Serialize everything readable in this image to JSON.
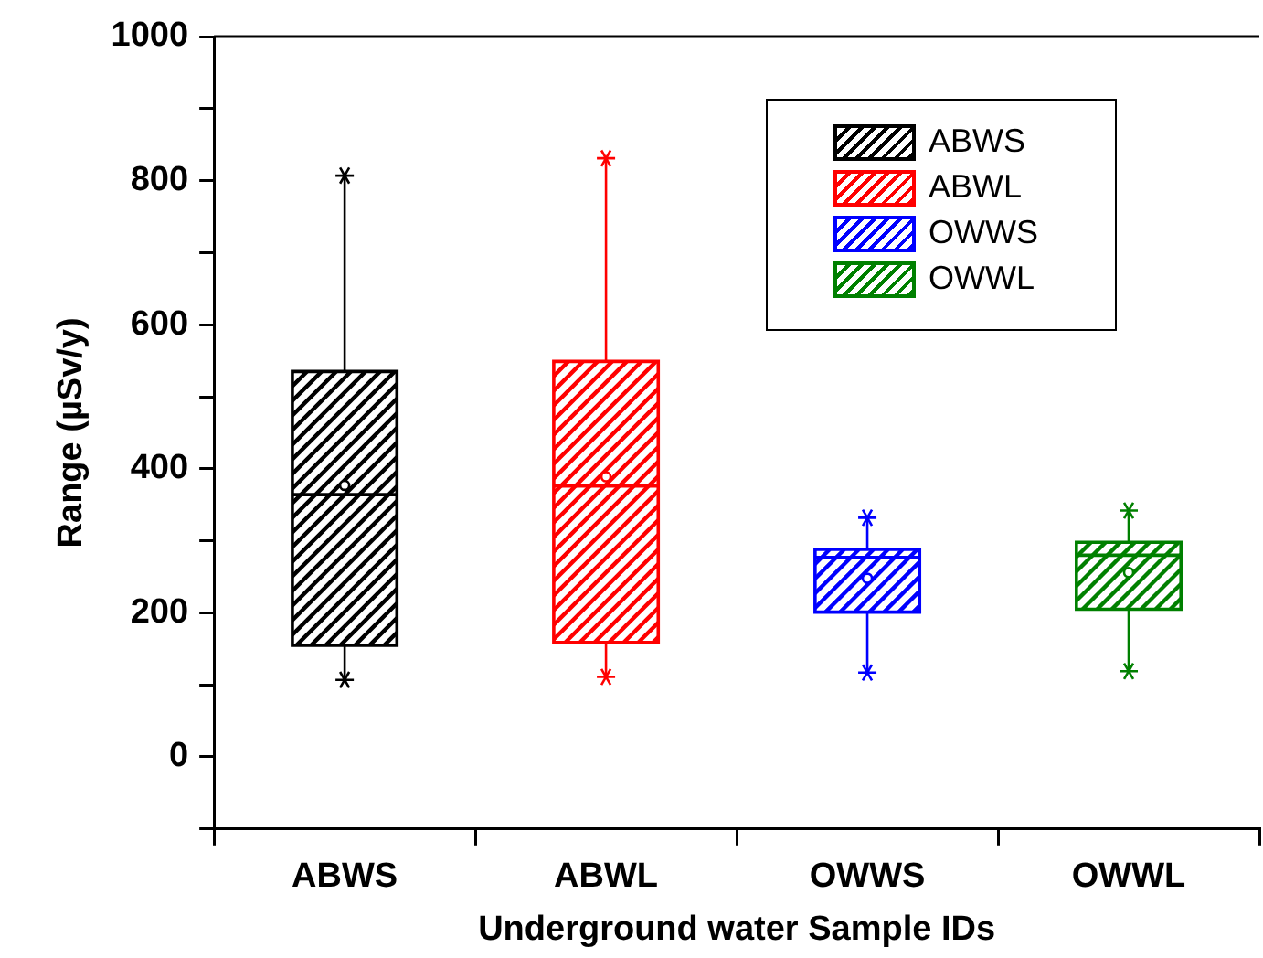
{
  "chart_data": {
    "type": "box",
    "xlabel": "Underground water Sample IDs",
    "ylabel": "Range (µSv/y)",
    "categories": [
      "ABWS",
      "ABWL",
      "OWWS",
      "OWWL"
    ],
    "series": [
      {
        "name": "ABWS",
        "color": "#000000",
        "boxes": [
          {
            "low": 107,
            "q1": 155,
            "median": 364,
            "q3": 535,
            "high": 807,
            "mean": 377
          },
          null,
          null,
          null
        ]
      },
      {
        "name": "ABWL",
        "color": "#ff0000",
        "boxes": [
          null,
          {
            "low": 111,
            "q1": 159,
            "median": 376,
            "q3": 549,
            "high": 831,
            "mean": 389
          },
          null,
          null
        ]
      },
      {
        "name": "OWWS",
        "color": "#0000ff",
        "boxes": [
          null,
          null,
          {
            "low": 117,
            "q1": 201,
            "median": 277,
            "q3": 288,
            "high": 332,
            "mean": 248
          },
          null
        ]
      },
      {
        "name": "OWWL",
        "color": "#008000",
        "boxes": [
          null,
          null,
          null,
          {
            "low": 119,
            "q1": 205,
            "median": 280,
            "q3": 298,
            "high": 342,
            "mean": 256
          }
        ]
      }
    ],
    "ylim": [
      -100,
      1000
    ],
    "yticks": [
      {
        "value": -100,
        "label": null
      },
      0,
      {
        "value": 100,
        "label": null
      },
      200,
      {
        "value": 300,
        "label": null
      },
      400,
      {
        "value": 500,
        "label": null
      },
      600,
      {
        "value": 700,
        "label": null
      },
      800,
      {
        "value": 900,
        "label": null
      },
      1000
    ],
    "legend": "top right",
    "grid": false,
    "marker": "star"
  }
}
